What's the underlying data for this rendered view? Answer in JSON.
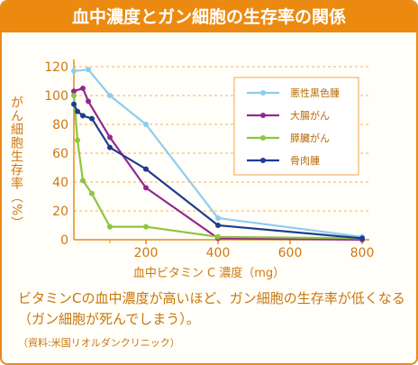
{
  "header": {
    "title": "血中濃度とガン細胞の生存率の関係"
  },
  "chart_data": {
    "type": "line",
    "title": "血中濃度とガン細胞の生存率の関係",
    "xlabel": "血中ビタミン C 濃度（mg）",
    "ylabel": "がん細胞生存率（%）",
    "xlim": [
      0,
      800
    ],
    "ylim": [
      0,
      120
    ],
    "xticks": [
      200,
      400,
      600,
      800
    ],
    "yticks": [
      0,
      20,
      40,
      60,
      80,
      100,
      120
    ],
    "grid": "horizontal-dashed",
    "legend_position": "top-right",
    "series": [
      {
        "name": "悪性黒色腫",
        "color": "#8ccdf0",
        "x": [
          0,
          40,
          100,
          200,
          400,
          800
        ],
        "y": [
          117,
          118,
          100,
          80,
          15,
          2
        ]
      },
      {
        "name": "大腸がん",
        "color": "#93278f",
        "x": [
          0,
          25,
          40,
          100,
          200,
          400,
          800
        ],
        "y": [
          103,
          105,
          96,
          71,
          36,
          1,
          0
        ]
      },
      {
        "name": "膵臓がん",
        "color": "#8dc63f",
        "x": [
          0,
          10,
          25,
          50,
          100,
          200,
          400,
          800
        ],
        "y": [
          100,
          69,
          41,
          32,
          9,
          9,
          2,
          1
        ]
      },
      {
        "name": "骨肉腫",
        "color": "#1d3c8f",
        "x": [
          0,
          10,
          25,
          50,
          100,
          200,
          400,
          800
        ],
        "y": [
          94,
          89,
          86,
          84,
          64,
          49,
          10,
          1
        ]
      }
    ]
  },
  "caption": "ビタミンCの血中濃度が高いほど、ガン細胞の生存率が低くなる（ガン細胞が死んでしまう）。",
  "source": "（資料:米国リオルダンクリニック）"
}
